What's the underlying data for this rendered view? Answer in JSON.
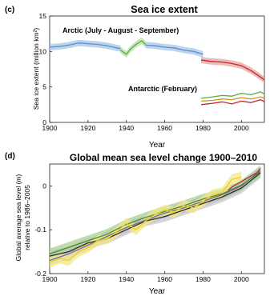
{
  "chart_data": [
    {
      "type": "line",
      "panel_letter": "(c)",
      "title": "Sea ice extent",
      "xlabel": "Year",
      "ylabel": "Sea ice extent (million km²)",
      "xlim": [
        1900,
        2012
      ],
      "ylim": [
        0,
        15
      ],
      "xticks": [
        1900,
        1920,
        1940,
        1960,
        1980,
        2000
      ],
      "yticks": [
        0,
        5,
        10,
        15
      ],
      "grid": false,
      "annotations": [
        "Arctic (July - August - September)",
        "Antarctic (February)"
      ],
      "series": [
        {
          "color": "#5b8fc9",
          "band": "#a8c4e6",
          "x": [
            1900,
            1905,
            1910,
            1915,
            1920,
            1925,
            1930,
            1935,
            1937
          ],
          "y": [
            10.6,
            10.7,
            10.9,
            11.2,
            11.1,
            11.0,
            10.8,
            10.5,
            10.4
          ]
        },
        {
          "color": "#5aae3c",
          "band": "#b3dca0",
          "x": [
            1937,
            1940,
            1942,
            1945,
            1948,
            1950
          ],
          "y": [
            10.2,
            9.6,
            10.3,
            11.0,
            11.5,
            11.0
          ]
        },
        {
          "color": "#5b8fc9",
          "band": "#a8c4e6",
          "x": [
            1950,
            1955,
            1960,
            1965,
            1970,
            1975,
            1980
          ],
          "y": [
            10.9,
            10.8,
            10.6,
            10.5,
            10.2,
            10.0,
            9.6
          ]
        },
        {
          "color": "#c1272d",
          "band": "#e7a3a3",
          "x": [
            1979,
            1984,
            1990,
            1995,
            2000,
            2005,
            2010,
            2012
          ],
          "y": [
            8.8,
            8.6,
            8.5,
            8.3,
            8.0,
            7.3,
            6.4,
            6.0
          ]
        },
        {
          "color": "#5aae3c",
          "x": [
            1979,
            1985,
            1990,
            1995,
            2000,
            2005,
            2010,
            2012
          ],
          "y": [
            3.4,
            3.6,
            3.8,
            3.7,
            4.1,
            3.9,
            4.3,
            4.0
          ]
        },
        {
          "color": "#e08f1c",
          "x": [
            1979,
            1985,
            1990,
            1995,
            2000,
            2005,
            2010,
            2012
          ],
          "y": [
            3.0,
            3.1,
            3.3,
            3.2,
            3.5,
            3.3,
            3.6,
            3.4
          ]
        },
        {
          "color": "#c1272d",
          "x": [
            1979,
            1985,
            1990,
            1995,
            2000,
            2005,
            2010,
            2012
          ],
          "y": [
            2.5,
            2.7,
            2.9,
            2.6,
            3.0,
            2.8,
            3.2,
            2.9
          ]
        }
      ]
    },
    {
      "type": "line",
      "panel_letter": "(d)",
      "title": "Global mean sea level change 1900–2010",
      "xlabel": "Year",
      "ylabel": "Global average sea level (m) relative to 1986–2005",
      "xlim": [
        1900,
        2012
      ],
      "ylim": [
        -0.2,
        0.05
      ],
      "xticks": [
        1900,
        1920,
        1940,
        1960,
        1980,
        2000
      ],
      "yticks": [
        -0.2,
        -0.1,
        0
      ],
      "ytick_labels": [
        "-0.2",
        "-0.1",
        "0"
      ],
      "grid": false,
      "series": [
        {
          "color": "#2b2b2b",
          "band": "#c8c8c8",
          "x": [
            1900,
            1910,
            1920,
            1930,
            1940,
            1950,
            1960,
            1970,
            1980,
            1990,
            2000,
            2010
          ],
          "y": [
            -0.16,
            -0.15,
            -0.13,
            -0.12,
            -0.1,
            -0.08,
            -0.07,
            -0.055,
            -0.04,
            -0.025,
            -0.005,
            0.03
          ]
        },
        {
          "color": "#7a63a8",
          "band": "#c9bfe0",
          "x": [
            1900,
            1910,
            1920,
            1930,
            1940,
            1950,
            1960,
            1970,
            1980,
            1990,
            2000,
            2010
          ],
          "y": [
            -0.17,
            -0.155,
            -0.135,
            -0.115,
            -0.095,
            -0.078,
            -0.062,
            -0.05,
            -0.035,
            -0.02,
            0.0,
            0.035
          ]
        },
        {
          "color": "#4c8a3a",
          "band": "#a9cf96",
          "x": [
            1900,
            1910,
            1920,
            1930,
            1940,
            1950,
            1960,
            1970,
            1980,
            1990,
            2000,
            2010
          ],
          "y": [
            -0.155,
            -0.14,
            -0.125,
            -0.11,
            -0.088,
            -0.072,
            -0.058,
            -0.045,
            -0.03,
            -0.018,
            0.002,
            0.032
          ]
        },
        {
          "color": "#e8d21d",
          "band": "#f3e88a",
          "x": [
            1900,
            1905,
            1910,
            1915,
            1920,
            1925,
            1930,
            1935,
            1940,
            1945,
            1950,
            1955,
            1960,
            1965,
            1970,
            1975,
            1980,
            1985,
            1990,
            1995,
            2000
          ],
          "y": [
            -0.175,
            -0.165,
            -0.17,
            -0.15,
            -0.14,
            -0.125,
            -0.12,
            -0.105,
            -0.085,
            -0.1,
            -0.08,
            -0.065,
            -0.055,
            -0.06,
            -0.045,
            -0.05,
            -0.035,
            -0.02,
            -0.015,
            0.015,
            0.02
          ]
        },
        {
          "color": "#c1272d",
          "x": [
            1993,
            1996,
            2000,
            2004,
            2008,
            2010
          ],
          "y": [
            -0.01,
            0.0,
            0.01,
            0.02,
            0.03,
            0.04
          ]
        }
      ]
    }
  ]
}
